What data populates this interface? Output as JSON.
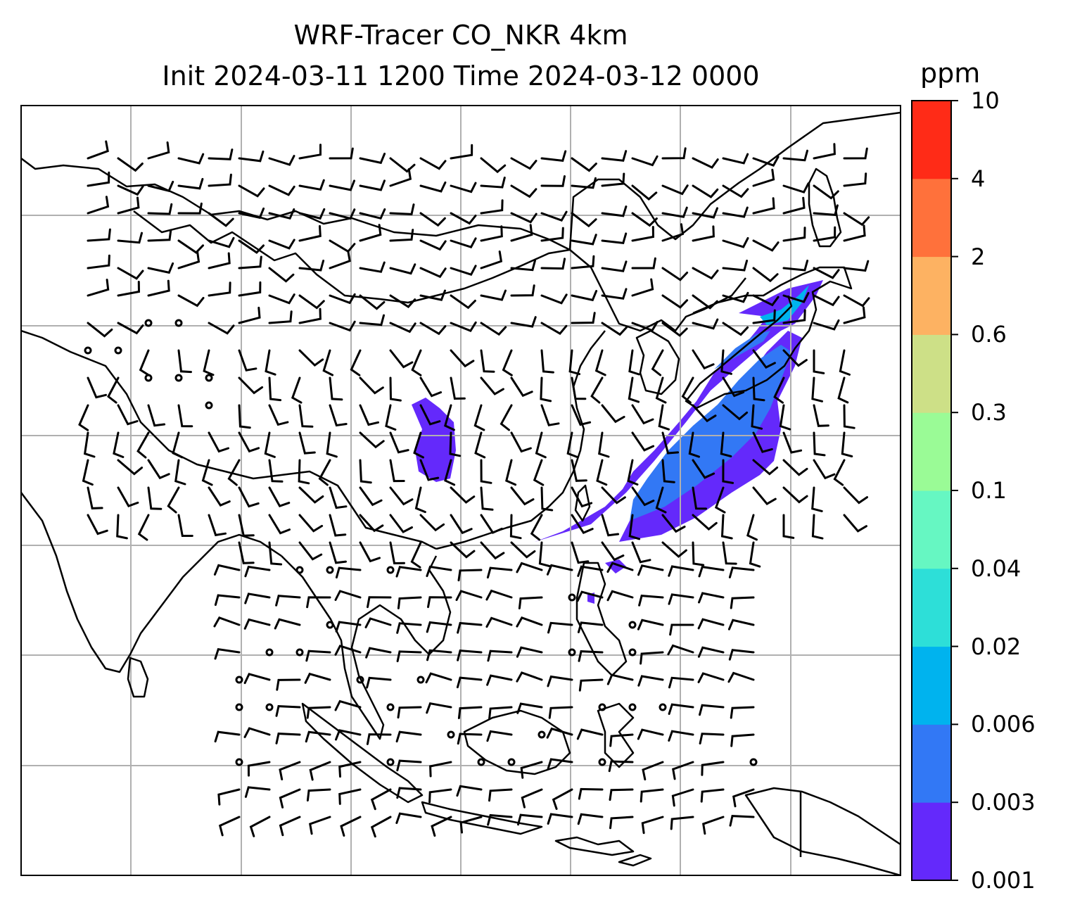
{
  "title": {
    "line1": "WRF-Tracer CO_NKR 4km",
    "line2": "Init 2024-03-11 1200 Time 2024-03-12 0000"
  },
  "colorbar": {
    "unit": "ppm",
    "levels": [
      "0.001",
      "0.003",
      "0.006",
      "0.02",
      "0.04",
      "0.1",
      "0.3",
      "0.6",
      "2",
      "4",
      "10"
    ],
    "colors": [
      "#6429fb",
      "#3278f5",
      "#00b3ee",
      "#2ddfd8",
      "#66f7c2",
      "#9afb96",
      "#cde087",
      "#fdb262",
      "#ff713b",
      "#ff2b17"
    ]
  },
  "map": {
    "gridline_color": "#b0b0b0",
    "coastline_color": "#000000",
    "wind_barb_color": "#000000"
  }
}
